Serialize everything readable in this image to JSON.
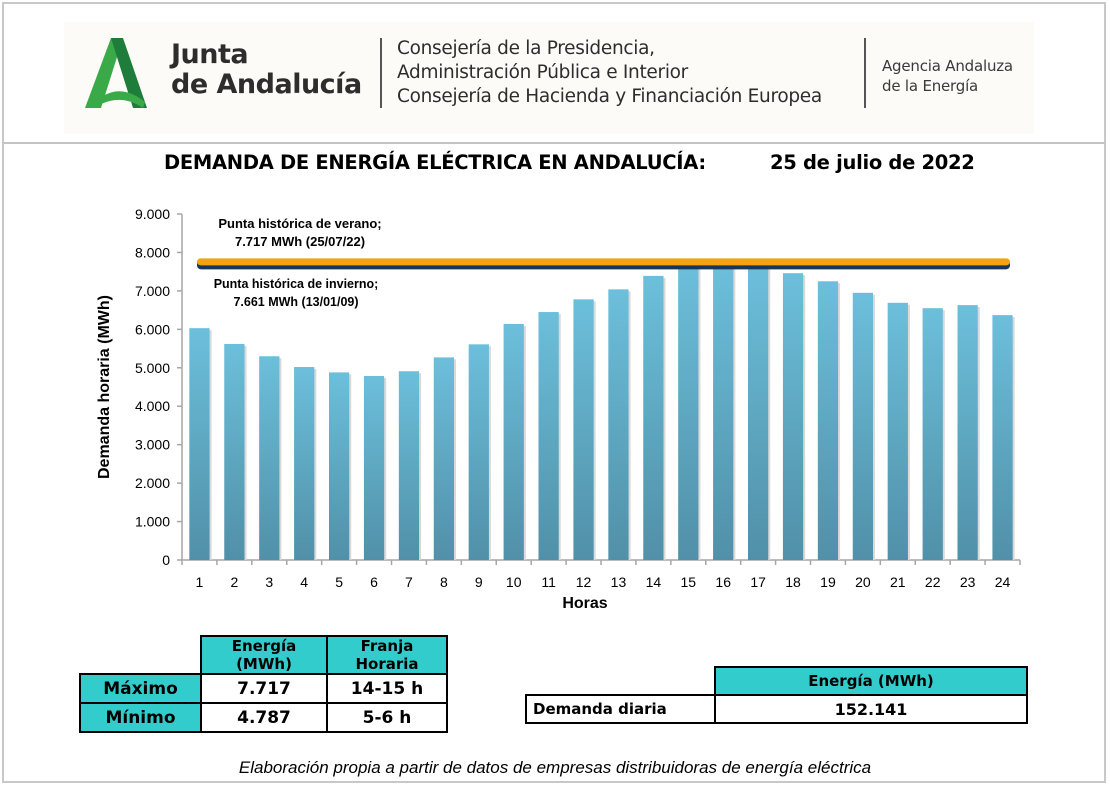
{
  "header": {
    "logo_line1": "Junta",
    "logo_line2": "de Andalucía",
    "consejeria_lines": [
      "Consejería de la Presidencia,",
      "Administración Pública e Interior",
      "Consejería de Hacienda y Financiación Europea"
    ],
    "agencia_lines": [
      "Agencia Andaluza",
      "de la Energía"
    ],
    "logo_colors": {
      "dark_green": "#1e7d3a",
      "light_green": "#3aaa48"
    }
  },
  "title": "DEMANDA DE ENERGÍA ELÉCTRICA EN ANDALUCÍA:",
  "date": "25 de julio de 2022",
  "chart_data": {
    "type": "bar",
    "title": "DEMANDA DE ENERGÍA ELÉCTRICA EN ANDALUCÍA: 25 de julio de 2022",
    "xlabel": "Horas",
    "ylabel": "Demanda horaria (MWh)",
    "ylim": [
      0,
      9000
    ],
    "yticks": [
      0,
      1000,
      2000,
      3000,
      4000,
      5000,
      6000,
      7000,
      8000,
      9000
    ],
    "ytick_labels": [
      "0",
      "1.000",
      "2.000",
      "3.000",
      "4.000",
      "5.000",
      "6.000",
      "7.000",
      "8.000",
      "9.000"
    ],
    "categories": [
      "1",
      "2",
      "3",
      "4",
      "5",
      "6",
      "7",
      "8",
      "9",
      "10",
      "11",
      "12",
      "13",
      "14",
      "15",
      "16",
      "17",
      "18",
      "19",
      "20",
      "21",
      "22",
      "23",
      "24"
    ],
    "values": [
      6030,
      5620,
      5300,
      5020,
      4880,
      4787,
      4910,
      5270,
      5610,
      6140,
      6450,
      6780,
      7040,
      7390,
      7717,
      7690,
      7660,
      7460,
      7250,
      6950,
      6690,
      6550,
      6630,
      6370
    ],
    "bar_color": "#6bbcd8",
    "grid": false,
    "reference_lines": [
      {
        "label_line1": "Punta histórica de verano;",
        "label_line2": "7.717 MWh (25/07/22)",
        "value": 7717,
        "color": "#f2a30f"
      },
      {
        "label_line1": "Punta histórica de invierno;",
        "label_line2": "7.661 MWh (13/01/09)",
        "value": 7661,
        "color": "#17365d"
      }
    ]
  },
  "minmax_table": {
    "headers": [
      "",
      "Energía (MWh)",
      "Franja Horaria"
    ],
    "rows": [
      {
        "label": "Máximo",
        "energia": "7.717",
        "franja": "14-15 h"
      },
      {
        "label": "Mínimo",
        "energia": "4.787",
        "franja": "5-6 h"
      }
    ]
  },
  "daily_table": {
    "header": "Energía (MWh)",
    "label": "Demanda diaria",
    "value": "152.141"
  },
  "footer": "Elaboración propia a partir de datos de empresas distribuidoras de energía eléctrica"
}
